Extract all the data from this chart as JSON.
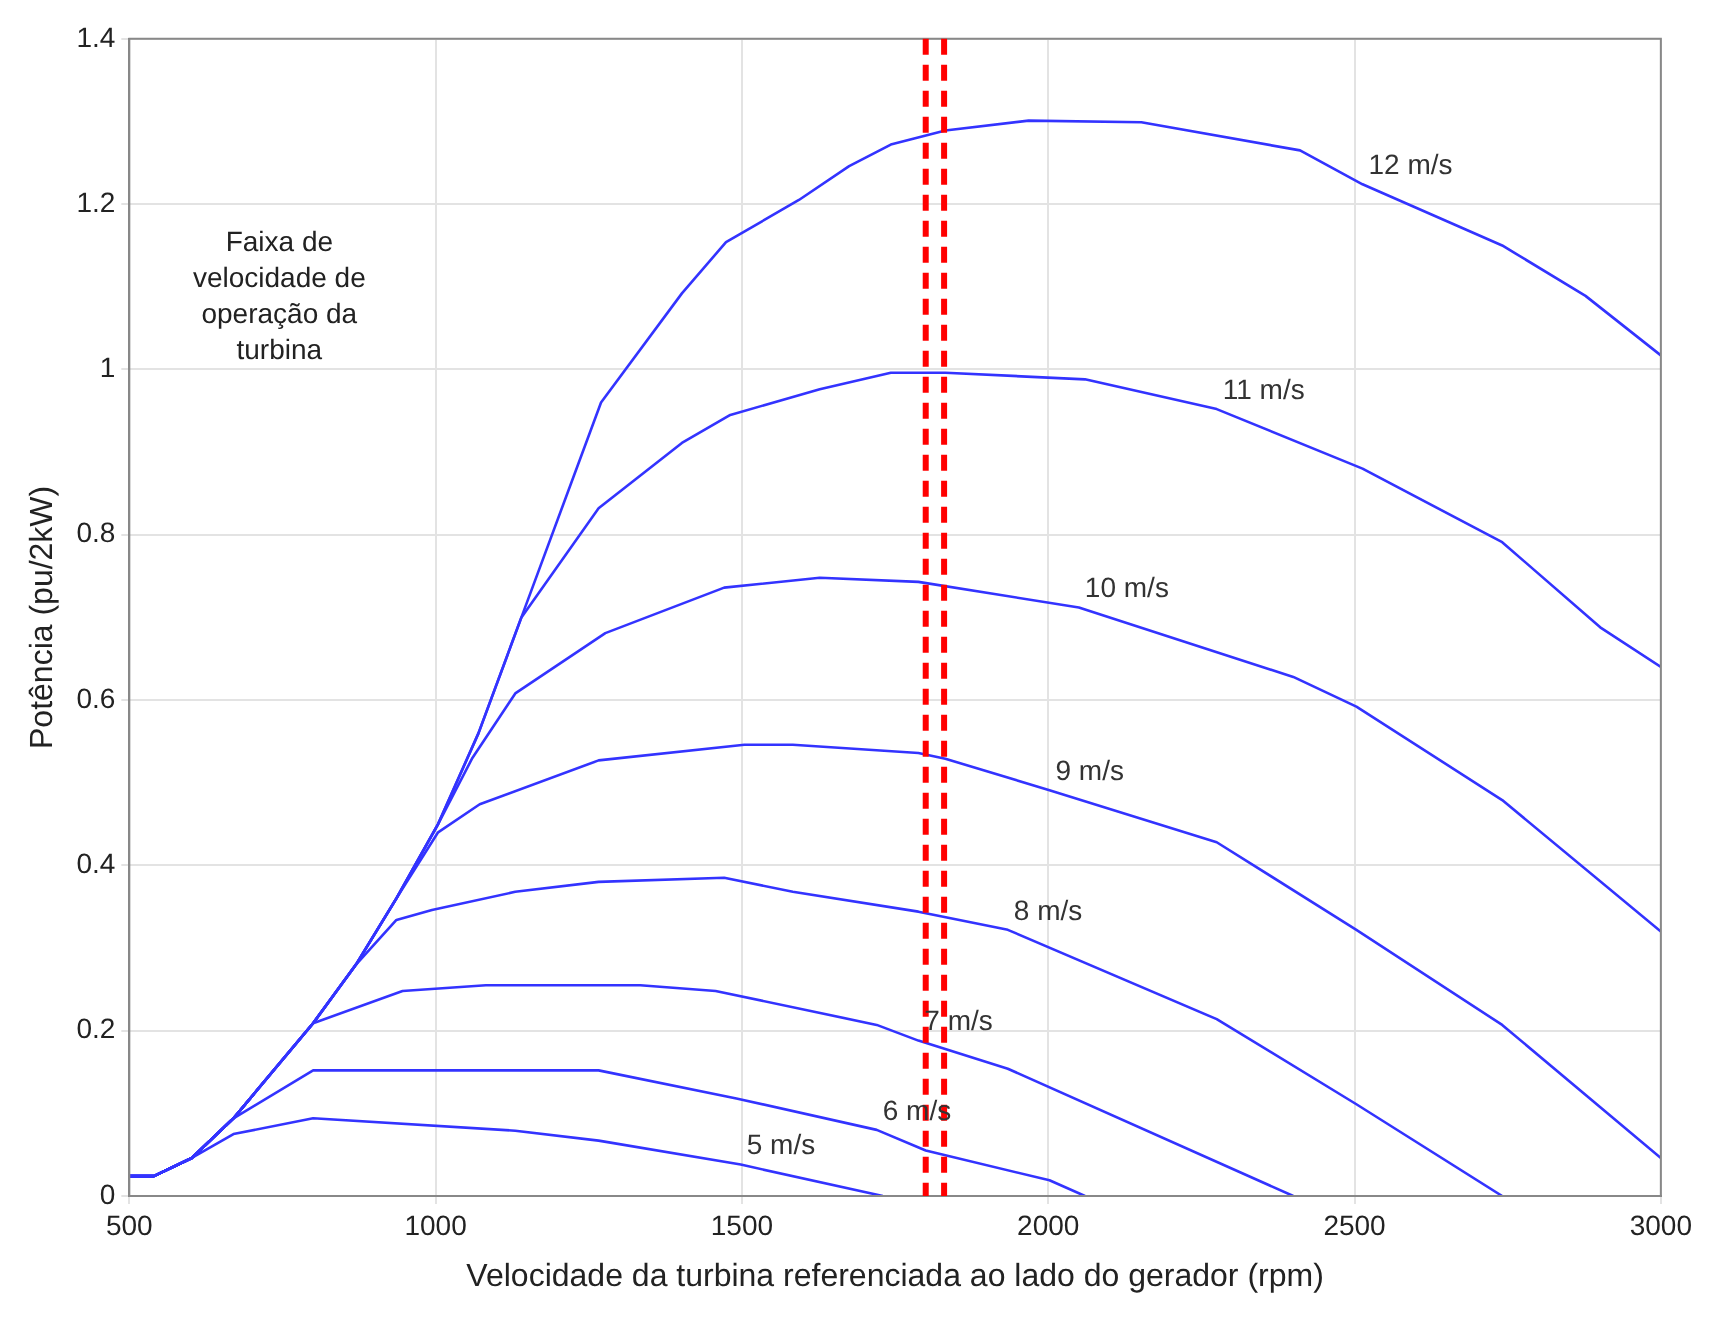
{
  "chart_data": {
    "type": "line",
    "xlabel": "Velocidade da turbina referenciada ao lado do gerador (rpm)",
    "ylabel": "Potência (pu/2kW)",
    "xlim": [
      500,
      3000
    ],
    "xticks": [
      500,
      1000,
      1500,
      2000,
      2500,
      3000
    ],
    "ylim": [
      0,
      1.4
    ],
    "yticks": [
      0,
      0.2,
      0.4,
      0.6,
      0.8,
      1,
      1.2,
      1.4
    ],
    "grid": true,
    "legend": false,
    "marker": "none",
    "line_style": "solid",
    "annotations": [
      "Faixa de velocidade de operação da turbina"
    ],
    "ref_lines": [
      {
        "axis": "x",
        "value": 1800,
        "color": "#ff0000",
        "line_style": "dashed"
      },
      {
        "axis": "x",
        "value": 1830,
        "color": "#ff0000",
        "line_style": "dashed"
      }
    ],
    "series": [
      {
        "name": "5 m/s",
        "color": "#3333ff",
        "x": [
          500,
          540,
          602,
          670,
          800,
          1130,
          1266,
          1498,
          1730
        ],
        "values": [
          0.024,
          0.024,
          0.046,
          0.075,
          0.094,
          0.079,
          0.067,
          0.038,
          0
        ]
      },
      {
        "name": "6 m/s",
        "color": "#3333ff",
        "x": [
          500,
          540,
          602,
          670,
          800,
          1266,
          1491,
          1720,
          1800,
          2002,
          2060
        ],
        "values": [
          0.024,
          0.024,
          0.046,
          0.094,
          0.152,
          0.152,
          0.118,
          0.08,
          0.055,
          0.019,
          0
        ]
      },
      {
        "name": "7 m/s",
        "color": "#3333ff",
        "x": [
          500,
          540,
          602,
          670,
          800,
          946,
          1082,
          1334,
          1457,
          1720,
          1788,
          1934,
          2400
        ],
        "values": [
          0.024,
          0.024,
          0.046,
          0.094,
          0.209,
          0.248,
          0.255,
          0.255,
          0.248,
          0.207,
          0.188,
          0.154,
          0
        ]
      },
      {
        "name": "8 m/s",
        "color": "#3333ff",
        "x": [
          500,
          540,
          602,
          670,
          800,
          870,
          936,
          994,
          1130,
          1266,
          1471,
          1583,
          1788,
          1934,
          2275,
          2503,
          2741
        ],
        "values": [
          0.024,
          0.024,
          0.046,
          0.094,
          0.209,
          0.28,
          0.334,
          0.346,
          0.368,
          0.38,
          0.385,
          0.368,
          0.344,
          0.322,
          0.214,
          0.111,
          0
        ]
      },
      {
        "name": "9 m/s",
        "color": "#3333ff",
        "x": [
          500,
          540,
          602,
          670,
          800,
          870,
          936,
          1004,
          1072,
          1266,
          1504,
          1583,
          1788,
          1832,
          2002,
          2275,
          2503,
          2741,
          3000
        ],
        "values": [
          0.024,
          0.024,
          0.046,
          0.094,
          0.209,
          0.28,
          0.36,
          0.44,
          0.474,
          0.527,
          0.546,
          0.546,
          0.536,
          0.529,
          0.491,
          0.428,
          0.322,
          0.207,
          0.046
        ]
      },
      {
        "name": "10 m/s",
        "color": "#3333ff",
        "x": [
          500,
          540,
          602,
          670,
          800,
          870,
          936,
          1004,
          1060,
          1130,
          1277,
          1471,
          1627,
          1788,
          2050,
          2400,
          2503,
          2741,
          3000
        ],
        "values": [
          0.024,
          0.024,
          0.046,
          0.094,
          0.209,
          0.28,
          0.36,
          0.45,
          0.53,
          0.608,
          0.681,
          0.736,
          0.748,
          0.743,
          0.712,
          0.628,
          0.592,
          0.479,
          0.32
        ]
      },
      {
        "name": "11 m/s",
        "color": "#3333ff",
        "x": [
          500,
          540,
          602,
          670,
          800,
          870,
          936,
          1004,
          1070,
          1140,
          1266,
          1402,
          1481,
          1627,
          1743,
          1832,
          2060,
          2275,
          2513,
          2741,
          2901,
          3000
        ],
        "values": [
          0.024,
          0.024,
          0.046,
          0.094,
          0.209,
          0.28,
          0.36,
          0.45,
          0.56,
          0.7,
          0.832,
          0.911,
          0.945,
          0.976,
          0.996,
          0.996,
          0.988,
          0.952,
          0.88,
          0.791,
          0.688,
          0.64
        ]
      },
      {
        "name": "12 m/s",
        "color": "#3333ff",
        "x": [
          500,
          540,
          602,
          670,
          800,
          870,
          936,
          1004,
          1070,
          1140,
          1270,
          1402,
          1474,
          1593,
          1675,
          1743,
          1832,
          1968,
          2152,
          2411,
          2513,
          2741,
          2877,
          3000
        ],
        "values": [
          0.024,
          0.024,
          0.046,
          0.094,
          0.209,
          0.28,
          0.36,
          0.45,
          0.56,
          0.7,
          0.96,
          1.092,
          1.154,
          1.205,
          1.246,
          1.272,
          1.289,
          1.301,
          1.299,
          1.265,
          1.224,
          1.15,
          1.089,
          1.017
        ]
      }
    ]
  }
}
